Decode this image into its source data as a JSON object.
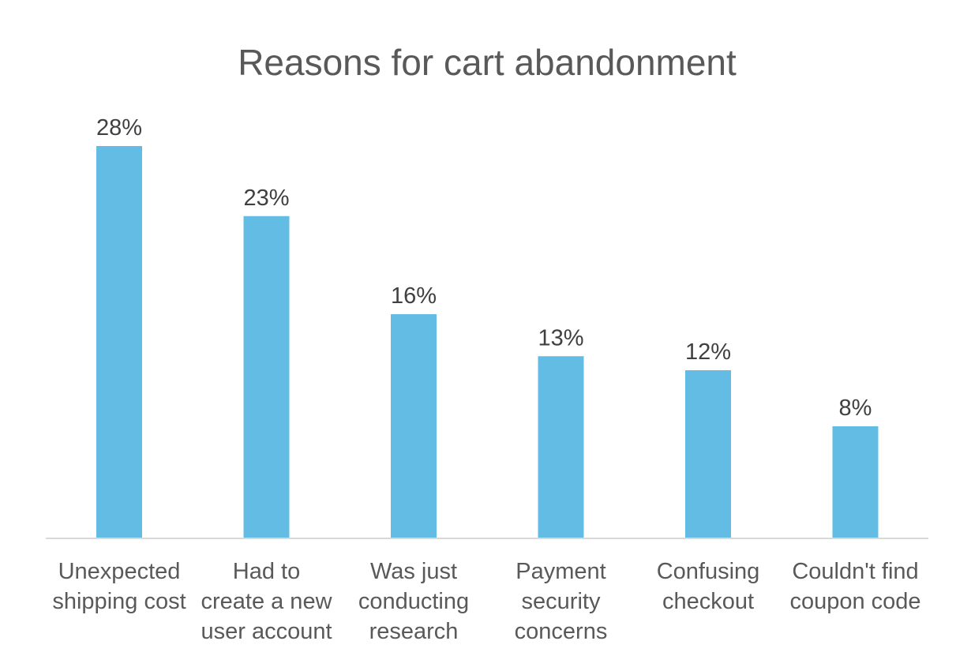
{
  "chart_data": {
    "type": "bar",
    "title": "Reasons for cart abandonment",
    "xlabel": "",
    "ylabel": "",
    "categories": [
      [
        "Unexpected",
        "shipping cost"
      ],
      [
        "Had to",
        "create a new",
        "user account"
      ],
      [
        "Was just",
        "conducting",
        "research"
      ],
      [
        "Payment",
        "security",
        "concerns"
      ],
      [
        "Confusing",
        "checkout"
      ],
      [
        "Couldn't find",
        "coupon code"
      ]
    ],
    "values": [
      28,
      23,
      16,
      13,
      12,
      8
    ],
    "data_labels": [
      "28%",
      "23%",
      "16%",
      "13%",
      "12%",
      "8%"
    ],
    "ylim": [
      0,
      30
    ],
    "grid": false,
    "legend": "none",
    "bar_color": "#62BCE4",
    "axis_color": "#D9D9D9"
  }
}
